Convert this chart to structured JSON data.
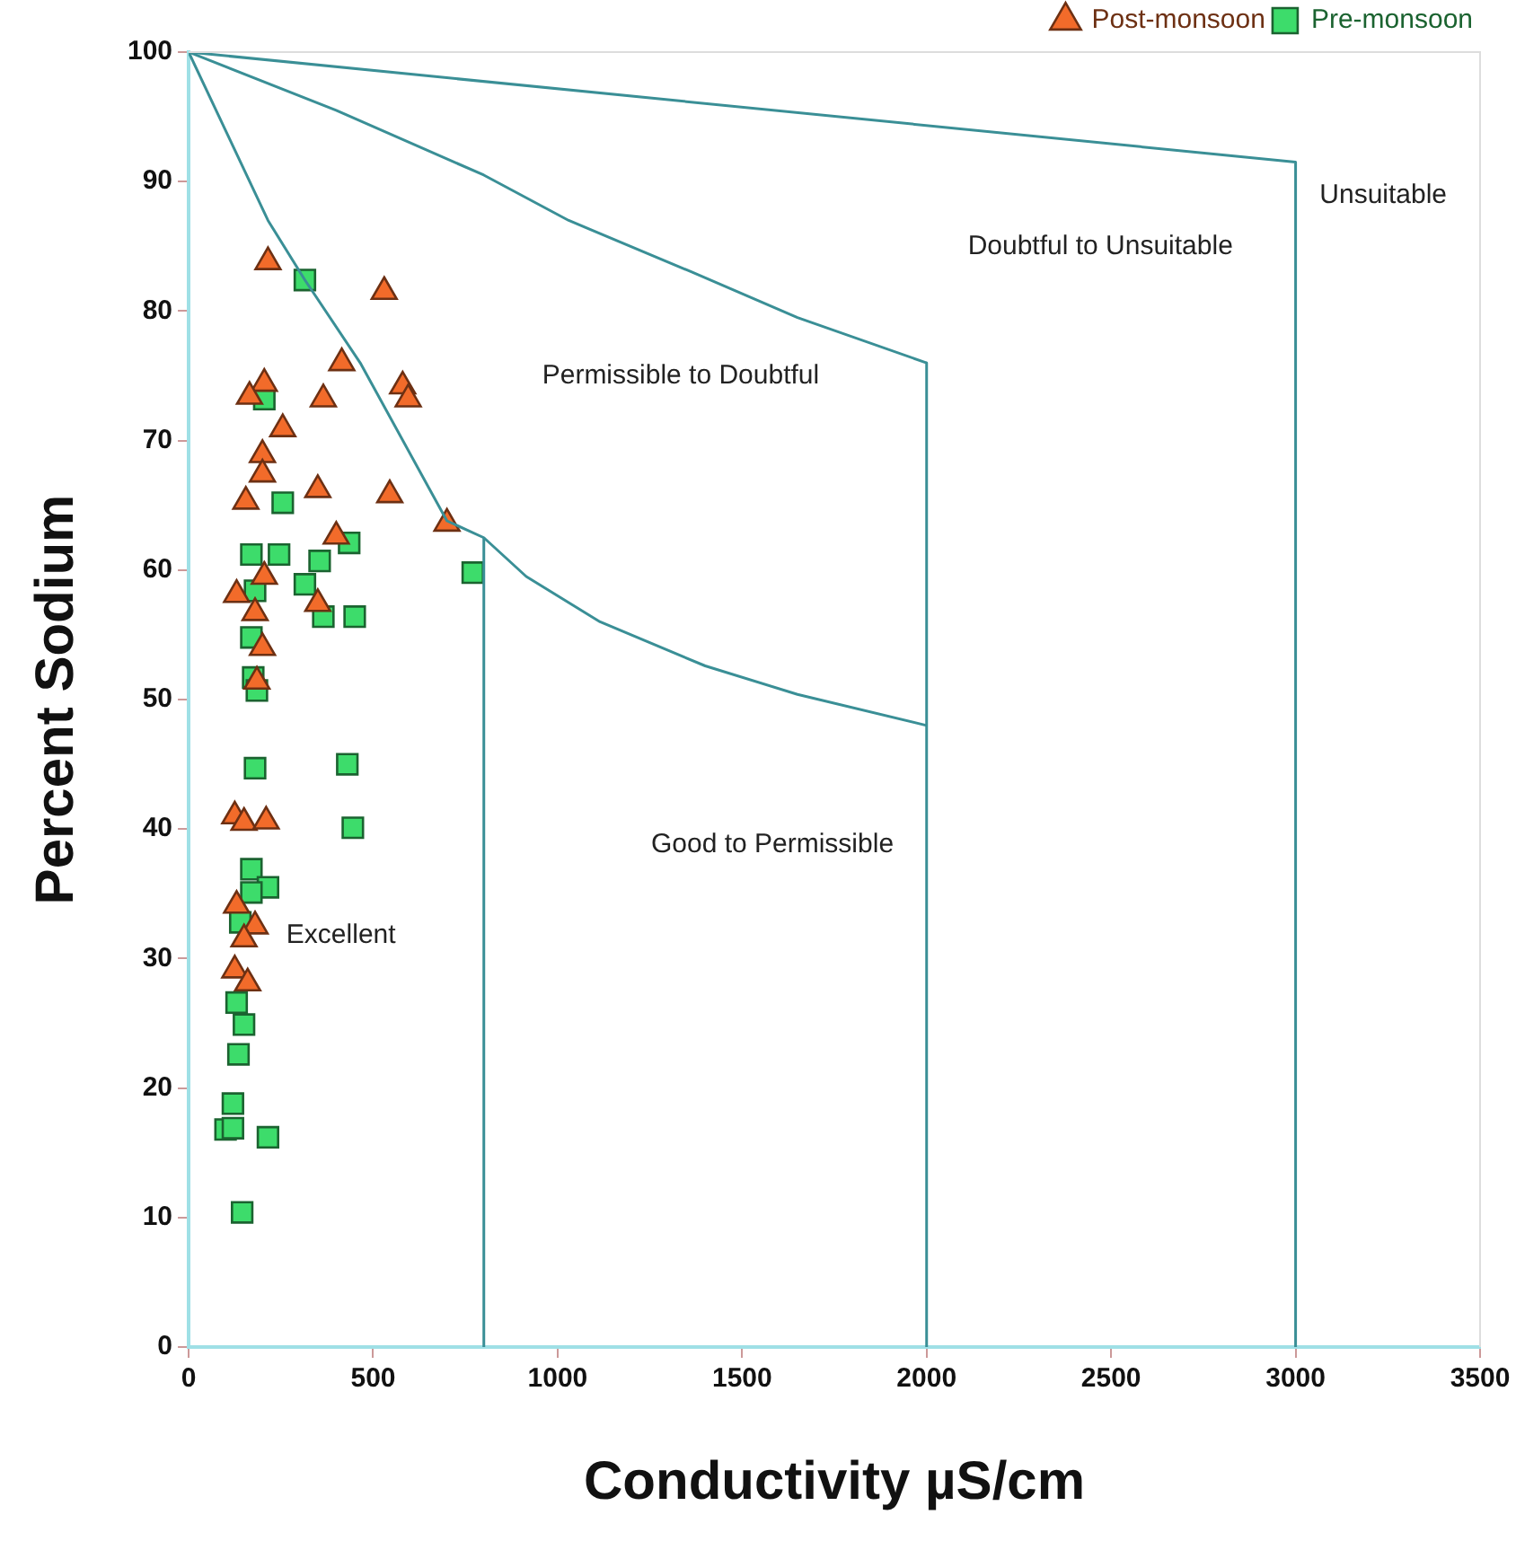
{
  "chart_data": {
    "type": "scatter",
    "xlabel": "Conductivity µS/cm",
    "ylabel": "Percent Sodium",
    "xlim": [
      0,
      3500
    ],
    "ylim": [
      0,
      100
    ],
    "xticks": [
      0,
      500,
      1000,
      1500,
      2000,
      2500,
      3000,
      3500
    ],
    "yticks": [
      0,
      10,
      20,
      30,
      40,
      50,
      60,
      70,
      80,
      90,
      100
    ],
    "grid": false,
    "legend": "top right",
    "series": [
      {
        "type": "line",
        "color": "#3a8f96",
        "marker": "none",
        "x": [
          0,
          3000,
          3000
        ],
        "values": [
          100,
          91.5,
          0
        ]
      },
      {
        "type": "line",
        "color": "#3a8f96",
        "marker": "none",
        "x": [
          0,
          400,
          800,
          1030,
          1365,
          1650,
          2000,
          2000
        ],
        "values": [
          100,
          95.5,
          90.5,
          87,
          83,
          79.5,
          76,
          0
        ]
      },
      {
        "type": "line",
        "color": "#3a8f96",
        "marker": "none",
        "x": [
          0,
          215,
          315,
          465,
          700,
          800,
          915,
          1115,
          1400,
          1650,
          2000
        ],
        "values": [
          100,
          87,
          82.4,
          76,
          63.8,
          62.5,
          59.5,
          56,
          52.6,
          50.4,
          48
        ]
      },
      {
        "type": "line",
        "color": "#3a8f96",
        "marker": "none",
        "x": [
          800,
          800
        ],
        "values": [
          0,
          62.5
        ]
      },
      {
        "name": "Post-monsoon",
        "color": "#f26b2a",
        "marker": "triangle",
        "x": [
          215,
          530,
          415,
          205,
          580,
          595,
          365,
          165,
          255,
          200,
          200,
          350,
          155,
          545,
          700,
          400,
          205,
          130,
          180,
          350,
          200,
          185,
          125,
          150,
          210,
          130,
          180,
          150,
          125,
          160
        ],
        "values": [
          83.8,
          81.5,
          76,
          74.4,
          74.2,
          73.2,
          73.2,
          73.4,
          70.9,
          68.9,
          67.4,
          66.2,
          65.3,
          65.8,
          63.6,
          62.6,
          59.5,
          58.1,
          56.7,
          57.4,
          54,
          51.4,
          41,
          40.5,
          40.6,
          34.1,
          32.5,
          31.5,
          29.1,
          28.1
        ]
      },
      {
        "name": "Pre-monsoon",
        "color": "#3ddc6b",
        "marker": "square",
        "x": [
          315,
          205,
          255,
          170,
          245,
          435,
          355,
          315,
          180,
          365,
          450,
          770,
          170,
          175,
          185,
          180,
          430,
          445,
          170,
          215,
          170,
          140,
          130,
          150,
          135,
          120,
          100,
          120,
          215,
          145
        ],
        "values": [
          82.4,
          73.2,
          65.2,
          61.2,
          61.2,
          62.1,
          60.7,
          58.9,
          58.4,
          56.4,
          56.4,
          59.8,
          54.8,
          51.7,
          50.7,
          44.7,
          45,
          40.1,
          36.9,
          35.5,
          35.1,
          32.8,
          26.6,
          24.9,
          22.6,
          18.8,
          16.8,
          16.9,
          16.2,
          10.4
        ]
      }
    ],
    "annotations": [
      "Excellent",
      "Good to Permissible",
      "Permissible to Doubtful",
      "Doubtful to Unsuitable",
      "Unsuitable"
    ]
  }
}
